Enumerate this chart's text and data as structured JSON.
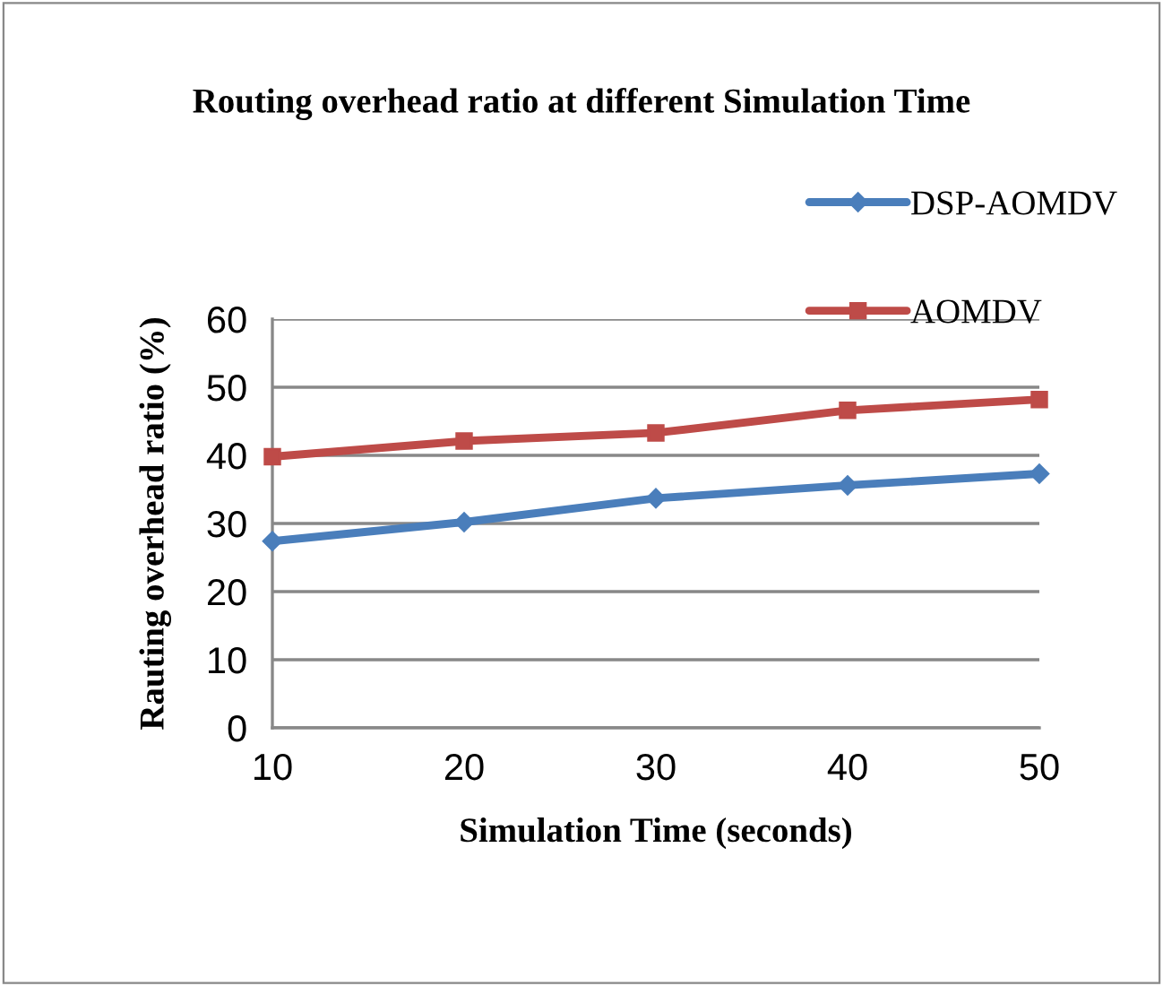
{
  "chart_data": {
    "type": "line",
    "title": "Routing overhead ratio at different Simulation Time",
    "xlabel": "Simulation Time (seconds)",
    "ylabel": "Rauting overhead ratio (%)",
    "x": [
      10,
      20,
      30,
      40,
      50
    ],
    "series": [
      {
        "name": "DSP-AOMDV",
        "color": "#4a7ebb",
        "marker": "diamond",
        "values": [
          27.4,
          30.2,
          33.7,
          35.6,
          37.3
        ]
      },
      {
        "name": "AOMDV",
        "color": "#be4b48",
        "marker": "square",
        "values": [
          39.8,
          42.1,
          43.3,
          46.6,
          48.2
        ]
      }
    ],
    "xlim": [
      10,
      50
    ],
    "xticks": [
      10,
      20,
      30,
      40,
      50
    ],
    "ylim": [
      0,
      60
    ],
    "yticks": [
      0,
      10,
      20,
      30,
      40,
      50,
      60
    ],
    "grid": "y",
    "legend": "top right",
    "line_style": "solid"
  }
}
